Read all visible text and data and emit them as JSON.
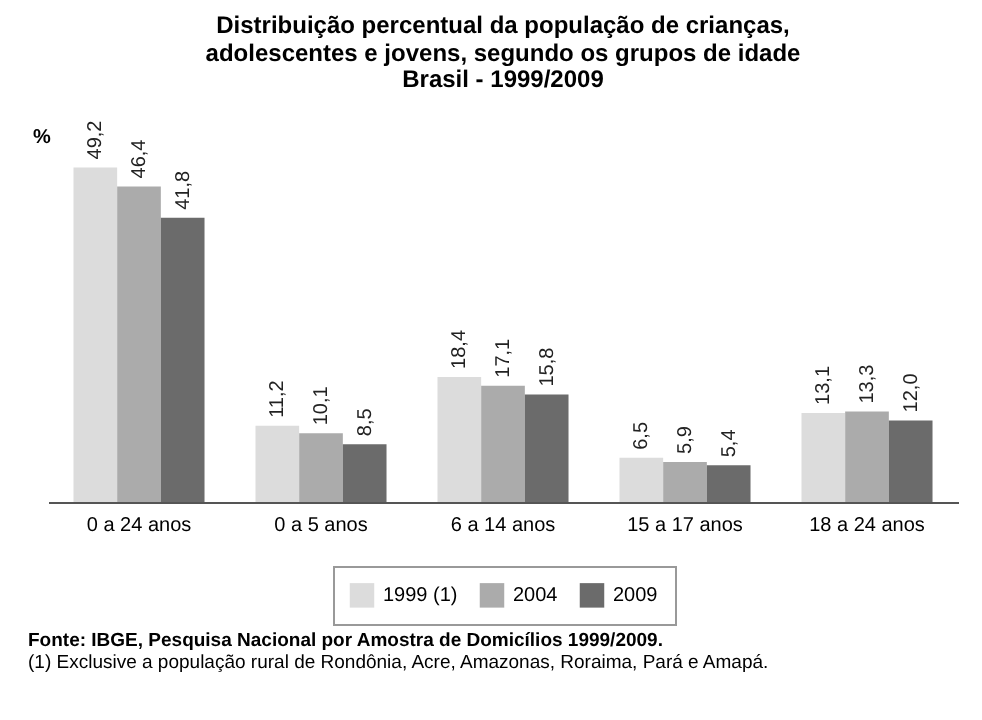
{
  "chart_data": {
    "type": "bar",
    "title": [
      "Distribuição percentual da população de crianças,",
      "adolescentes e jovens, segundo os grupos de idade"
    ],
    "subtitle": "Brasil - 1999/2009",
    "ylabel": "%",
    "categories": [
      "0 a 24 anos",
      "0 a 5 anos",
      "6 a 14 anos",
      "15 a 17 anos",
      "18 a 24 anos"
    ],
    "series": [
      {
        "name": "1999 (1)",
        "color": "#dcdcdc",
        "values": [
          49.2,
          11.2,
          18.4,
          6.5,
          13.1
        ],
        "value_labels": [
          "49,2",
          "11,2",
          "18,4",
          "6,5",
          "13,1"
        ]
      },
      {
        "name": "2004",
        "color": "#ababab",
        "values": [
          46.4,
          10.1,
          17.1,
          5.9,
          13.3
        ],
        "value_labels": [
          "46,4",
          "10,1",
          "17,1",
          "5,9",
          "13,3"
        ]
      },
      {
        "name": "2009",
        "color": "#6b6b6b",
        "values": [
          41.8,
          8.5,
          15.8,
          5.4,
          12.0
        ],
        "value_labels": [
          "41,8",
          "8,5",
          "15,8",
          "5,4",
          "12,0"
        ]
      }
    ],
    "legend": "bottom",
    "grid": false,
    "annotations": [
      "Fonte: IBGE,  Pesquisa Nacional por Amostra de Domicílios 1999/2009.",
      "(1) Exclusive a população rural de Rondônia, Acre, Amazonas, Roraima, Pará e Amapá."
    ]
  }
}
